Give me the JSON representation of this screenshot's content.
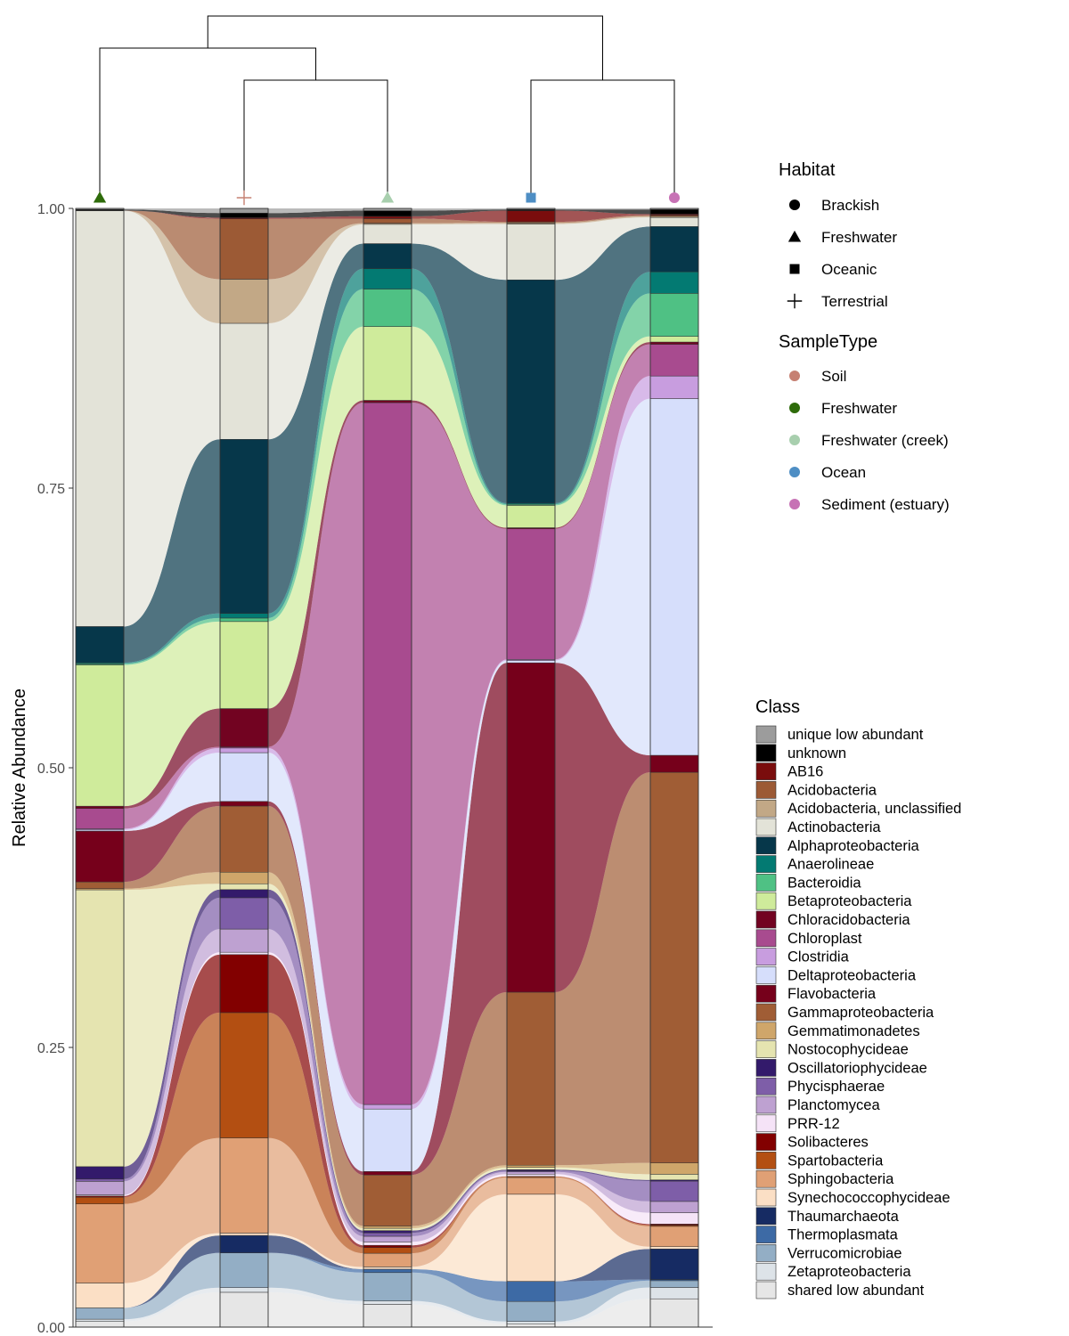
{
  "chart_data": {
    "type": "alluvial-stacked-bar",
    "ylabel": "Relative Abundance",
    "ylim": [
      0,
      1
    ],
    "yticks": [
      {
        "value": 0,
        "label": "0.00"
      },
      {
        "value": 0.25,
        "label": "0.25"
      },
      {
        "value": 0.5,
        "label": "0.50"
      },
      {
        "value": 0.75,
        "label": "0.75"
      },
      {
        "value": 1,
        "label": "1.00"
      }
    ],
    "grid": false,
    "samples": [
      {
        "habitat": "Freshwater",
        "sample_type": "Freshwater"
      },
      {
        "habitat": "Terrestrial",
        "sample_type": "Soil"
      },
      {
        "habitat": "Freshwater",
        "sample_type": "Freshwater (creek)"
      },
      {
        "habitat": "Oceanic",
        "sample_type": "Ocean"
      },
      {
        "habitat": "Brackish",
        "sample_type": "Sediment (estuary)"
      }
    ],
    "dendrogram": {
      "merges": [
        {
          "left": 1,
          "right": 2,
          "height": 0.08
        },
        {
          "left": 0,
          "right": "1-2",
          "height": 0.1
        },
        {
          "left": 3,
          "right": 4,
          "height": 0.08
        },
        {
          "left": "0-1-2",
          "right": "3-4",
          "height": 0.12
        }
      ]
    },
    "class_order_bottom_to_top": [
      "shared low abundant",
      "Zetaproteobacteria",
      "Verrucomicrobiae",
      "Thermoplasmata",
      "Thaumarchaeota",
      "Synechococcophycideae",
      "Sphingobacteria",
      "Spartobacteria",
      "Solibacteres",
      "PRR-12",
      "Planctomycea",
      "Phycisphaerae",
      "Oscillatoriophycideae",
      "Nostocophycideae",
      "Gemmatimonadetes",
      "Gammaproteobacteria",
      "Flavobacteria",
      "Deltaproteobacteria",
      "Clostridia",
      "Chloroplast",
      "Chloracidobacteria",
      "Betaproteobacteria",
      "Bacteroidia",
      "Anaerolineae",
      "Alphaproteobacteria",
      "Actinobacteria",
      "Acidobacteria, unclassified",
      "Acidobacteria",
      "AB16",
      "unknown",
      "unique low abundant"
    ],
    "series": [
      {
        "name": "shared low abundant",
        "values": [
          0.005,
          0.03,
          0.02,
          0.003,
          0.025
        ]
      },
      {
        "name": "Zetaproteobacteria",
        "values": [
          0.002,
          0.004,
          0.003,
          0.002,
          0.01
        ]
      },
      {
        "name": "Verrucomicrobiae",
        "values": [
          0.01,
          0.03,
          0.025,
          0.018,
          0.006
        ]
      },
      {
        "name": "Thermoplasmata",
        "values": [
          0,
          0,
          0.003,
          0.018,
          0.001
        ]
      },
      {
        "name": "Thaumarchaeota",
        "values": [
          0,
          0.015,
          0,
          0,
          0.027
        ]
      },
      {
        "name": "Synechococcophycideae",
        "values": [
          0.022,
          0.002,
          0.002,
          0.078,
          0.002
        ]
      },
      {
        "name": "Sphingobacteria",
        "values": [
          0.07,
          0.082,
          0.012,
          0.015,
          0.018
        ]
      },
      {
        "name": "Spartobacteria",
        "values": [
          0.006,
          0.108,
          0.005,
          0.001,
          0.001
        ]
      },
      {
        "name": "Solibacteres",
        "values": [
          0.001,
          0.05,
          0.002,
          0,
          0.001
        ]
      },
      {
        "name": "PRR-12",
        "values": [
          0.001,
          0.002,
          0.003,
          0.002,
          0.01
        ]
      },
      {
        "name": "Planctomycea",
        "values": [
          0.012,
          0.02,
          0.005,
          0.002,
          0.01
        ]
      },
      {
        "name": "Phycisphaerae",
        "values": [
          0.002,
          0.027,
          0.003,
          0.001,
          0.018
        ]
      },
      {
        "name": "Oscillatoriophycideae",
        "values": [
          0.011,
          0.007,
          0.002,
          0.001,
          0.001
        ]
      },
      {
        "name": "Nostocophycideae",
        "values": [
          0.245,
          0.005,
          0.002,
          0.002,
          0.005
        ]
      },
      {
        "name": "Gemmatimonadetes",
        "values": [
          0.001,
          0.01,
          0.002,
          0.002,
          0.01
        ]
      },
      {
        "name": "Gammaproteobacteria",
        "values": [
          0.006,
          0.057,
          0.045,
          0.155,
          0.345
        ]
      },
      {
        "name": "Flavobacteria",
        "values": [
          0.045,
          0.004,
          0.003,
          0.295,
          0.015
        ]
      },
      {
        "name": "Deltaproteobacteria",
        "values": [
          0.001,
          0.042,
          0.055,
          0.002,
          0.315
        ]
      },
      {
        "name": "Clostridia",
        "values": [
          0.001,
          0.004,
          0.004,
          0.001,
          0.02
        ]
      },
      {
        "name": "Chloroplast",
        "values": [
          0.018,
          0.001,
          0.618,
          0.117,
          0.028
        ]
      },
      {
        "name": "Chloracidobacteria",
        "values": [
          0.002,
          0.033,
          0.002,
          0.001,
          0.002
        ]
      },
      {
        "name": "Betaproteobacteria",
        "values": [
          0.125,
          0.075,
          0.065,
          0.02,
          0.005
        ]
      },
      {
        "name": "Bacteroidia",
        "values": [
          0.001,
          0.003,
          0.033,
          0.001,
          0.038
        ]
      },
      {
        "name": "Anaerolineae",
        "values": [
          0.001,
          0.004,
          0.018,
          0.001,
          0.019
        ]
      },
      {
        "name": "Alphaproteobacteria",
        "values": [
          0.032,
          0.15,
          0.022,
          0.2,
          0.04
        ]
      },
      {
        "name": "Actinobacteria",
        "values": [
          0.368,
          0.1,
          0.017,
          0.05,
          0.008
        ]
      },
      {
        "name": "Acidobacteria, unclassified",
        "values": [
          0,
          0.038,
          0.001,
          0.001,
          0.001
        ]
      },
      {
        "name": "Acidobacteria",
        "values": [
          0,
          0.052,
          0.004,
          0.001,
          0.001
        ]
      },
      {
        "name": "AB16",
        "values": [
          0,
          0.001,
          0.002,
          0.01,
          0.001
        ]
      },
      {
        "name": "unknown",
        "values": [
          0.001,
          0.004,
          0.005,
          0.001,
          0.004
        ]
      },
      {
        "name": "unique low abundant",
        "values": [
          0.001,
          0.004,
          0.002,
          0.001,
          0.001
        ]
      }
    ]
  },
  "legend_habitat": {
    "title": "Habitat",
    "items": [
      {
        "label": "Brackish",
        "shape": "circle"
      },
      {
        "label": "Freshwater",
        "shape": "triangle"
      },
      {
        "label": "Oceanic",
        "shape": "square"
      },
      {
        "label": "Terrestrial",
        "shape": "plus"
      }
    ]
  },
  "legend_sampletype": {
    "title": "SampleType",
    "items": [
      {
        "label": "Soil",
        "color": "#c68072"
      },
      {
        "label": "Freshwater",
        "color": "#2e6b0a"
      },
      {
        "label": "Freshwater (creek)",
        "color": "#a8cfae"
      },
      {
        "label": "Ocean",
        "color": "#4e8ec4"
      },
      {
        "label": "Sediment (estuary)",
        "color": "#c772b5"
      }
    ]
  },
  "legend_class": {
    "title": "Class",
    "items": [
      {
        "label": "unique low abundant",
        "color": "#9c9c9c"
      },
      {
        "label": "unknown",
        "color": "#000000"
      },
      {
        "label": "AB16",
        "color": "#7a0d0d"
      },
      {
        "label": "Acidobacteria",
        "color": "#9c5a35"
      },
      {
        "label": "Acidobacteria, unclassified",
        "color": "#c2a886"
      },
      {
        "label": "Actinobacteria",
        "color": "#e3e3d8"
      },
      {
        "label": "Alphaproteobacteria",
        "color": "#06374a"
      },
      {
        "label": "Anaerolineae",
        "color": "#037a72"
      },
      {
        "label": "Bacteroidia",
        "color": "#4fc184"
      },
      {
        "label": "Betaproteobacteria",
        "color": "#cfeb9b"
      },
      {
        "label": "Chloracidobacteria",
        "color": "#720321"
      },
      {
        "label": "Chloroplast",
        "color": "#a84b8f"
      },
      {
        "label": "Clostridia",
        "color": "#c89ddf"
      },
      {
        "label": "Deltaproteobacteria",
        "color": "#d6defb"
      },
      {
        "label": "Flavobacteria",
        "color": "#76001b"
      },
      {
        "label": "Gammaproteobacteria",
        "color": "#a05d35"
      },
      {
        "label": "Gemmatimonadetes",
        "color": "#cfa66a"
      },
      {
        "label": "Nostocophycideae",
        "color": "#e5e4b0"
      },
      {
        "label": "Oscillatoriophycideae",
        "color": "#331a6b"
      },
      {
        "label": "Phycisphaerae",
        "color": "#7e5ea8"
      },
      {
        "label": "Planctomycea",
        "color": "#bea1d1"
      },
      {
        "label": "PRR-12",
        "color": "#f5e3f7"
      },
      {
        "label": "Solibacteres",
        "color": "#820000"
      },
      {
        "label": "Spartobacteria",
        "color": "#b34f12"
      },
      {
        "label": "Sphingobacteria",
        "color": "#e0a075"
      },
      {
        "label": "Synechococcophycideae",
        "color": "#fbdfc5"
      },
      {
        "label": "Thaumarchaeota",
        "color": "#162b63"
      },
      {
        "label": "Thermoplasmata",
        "color": "#3d6aa5"
      },
      {
        "label": "Verrucomicrobiae",
        "color": "#93aec5"
      },
      {
        "label": "Zetaproteobacteria",
        "color": "#dde3e8"
      },
      {
        "label": "shared low abundant",
        "color": "#e6e6e6"
      }
    ]
  }
}
